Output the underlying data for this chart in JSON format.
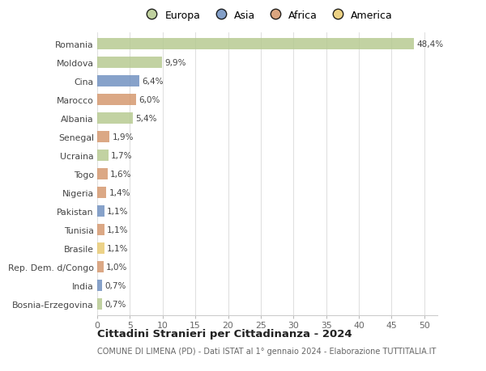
{
  "countries": [
    "Romania",
    "Moldova",
    "Cina",
    "Marocco",
    "Albania",
    "Senegal",
    "Ucraina",
    "Togo",
    "Nigeria",
    "Pakistan",
    "Tunisia",
    "Brasile",
    "Rep. Dem. d/Congo",
    "India",
    "Bosnia-Erzegovina"
  ],
  "values": [
    48.4,
    9.9,
    6.4,
    6.0,
    5.4,
    1.9,
    1.7,
    1.6,
    1.4,
    1.1,
    1.1,
    1.1,
    1.0,
    0.7,
    0.7
  ],
  "labels": [
    "48,4%",
    "9,9%",
    "6,4%",
    "6,0%",
    "5,4%",
    "1,9%",
    "1,7%",
    "1,6%",
    "1,4%",
    "1,1%",
    "1,1%",
    "1,1%",
    "1,0%",
    "0,7%",
    "0,7%"
  ],
  "colors": [
    "#b5c98e",
    "#b5c98e",
    "#6d8ebf",
    "#d4956a",
    "#b5c98e",
    "#d4956a",
    "#b5c98e",
    "#d4956a",
    "#d4956a",
    "#6d8ebf",
    "#d4956a",
    "#e8c96e",
    "#d4956a",
    "#6d8ebf",
    "#b5c98e"
  ],
  "legend_labels": [
    "Europa",
    "Asia",
    "Africa",
    "America"
  ],
  "legend_colors": [
    "#b5c98e",
    "#6d8ebf",
    "#d4956a",
    "#e8c96e"
  ],
  "title": "Cittadini Stranieri per Cittadinanza - 2024",
  "subtitle": "COMUNE DI LIMENA (PD) - Dati ISTAT al 1° gennaio 2024 - Elaborazione TUTTITALIA.IT",
  "xlim": [
    0,
    52
  ],
  "xticks": [
    0,
    5,
    10,
    15,
    20,
    25,
    30,
    35,
    40,
    45,
    50
  ],
  "bg_color": "#ffffff",
  "grid_color": "#e0e0e0",
  "bar_height": 0.6
}
